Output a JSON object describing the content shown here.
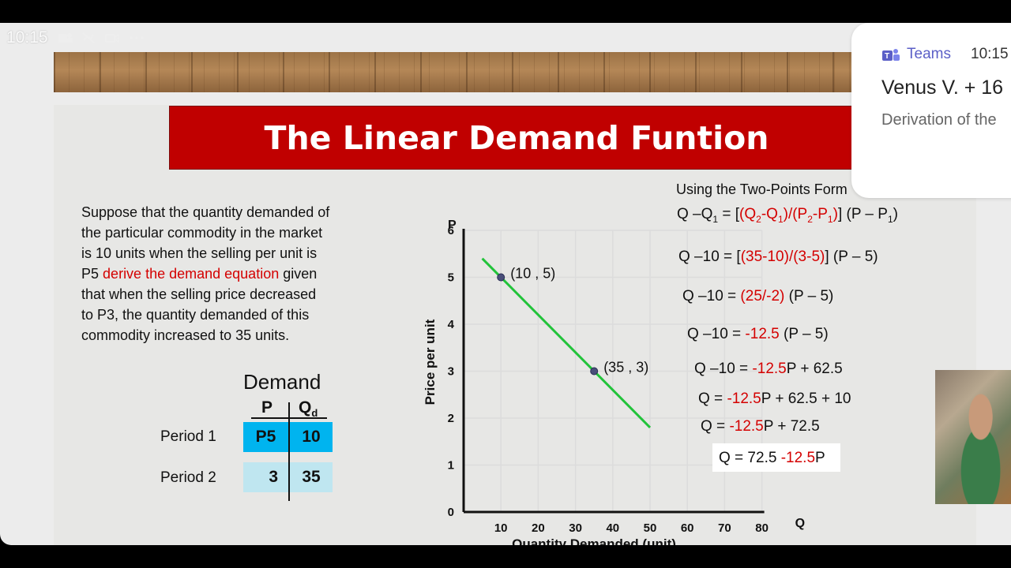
{
  "status_bar": {
    "time": "10:15",
    "icons": [
      "teams-icon",
      "muted-icon",
      "video-icon",
      "more-dots-icon"
    ]
  },
  "slide": {
    "title": "The Linear Demand Funtion",
    "problem": {
      "line1": "Suppose that the quantity demanded of",
      "line2": "the particular commodity in the market",
      "line3": "is 10 units when the selling per unit is",
      "line4_prefix": "P5",
      "line4_highlight": "derive the demand equation",
      "line4_suffix": "given",
      "line5": "that when the selling price decreased",
      "line6": "to P3, the quantity demanded of this",
      "line7": "commodity increased to 35 units."
    },
    "demand_table": {
      "title": "Demand",
      "col_p": "P",
      "col_q": "Q",
      "col_q_sub": "d",
      "rows": [
        {
          "period": "Period 1",
          "p": "P5",
          "q": "10"
        },
        {
          "period": "Period 2",
          "p": "3",
          "q": "35"
        }
      ]
    },
    "equations": {
      "heading": "Using the Two-Points Form",
      "e1": {
        "a": "Q –Q",
        "a_sub": "1",
        "b": " = [",
        "c_red": "(Q",
        "c_sub1": "2",
        "c2": "-Q",
        "c_sub2": "1",
        "c3": ")/(P",
        "c_sub3": "2",
        "c4": "-P",
        "c_sub4": "1",
        "c5": ")",
        "d": "] (P – P",
        "d_sub": "1",
        "e": ")"
      },
      "e2": {
        "a": "Q –10 = [",
        "red": "(35-10)/(3-5)",
        "b": "] (P – 5)"
      },
      "e3": {
        "a": "Q –10 = ",
        "red": "(25/-2)",
        "b": " (P – 5)"
      },
      "e4": {
        "a": "Q –10 = ",
        "red": "-12.5",
        "b": " (P – 5)"
      },
      "e5": {
        "a": "Q –10 = ",
        "red": "-12.5",
        "b": "P + 62.5"
      },
      "e6": {
        "a": "Q = ",
        "red": "-12.5",
        "b": "P + 62.5 + 10"
      },
      "e7": {
        "a": "Q = ",
        "red": "-12.5",
        "b": "P + 72.5"
      },
      "e8": {
        "a": "Q = 72.5 ",
        "red": "-12.5",
        "b": "P"
      }
    },
    "colors": {
      "banner": "#c00000",
      "highlight": "#d40000",
      "table_primary": "#00b4ef",
      "table_light": "#bfe6f0",
      "line": "#22c33a"
    }
  },
  "chart_data": {
    "type": "line",
    "xlabel": "Quantity Demanded (unit)",
    "ylabel": "Price per unit",
    "x_axis_letter": "Q",
    "y_axis_letter": "P",
    "xlim": [
      0,
      80
    ],
    "ylim": [
      0,
      6
    ],
    "x_ticks": [
      10,
      20,
      30,
      40,
      50,
      60,
      70,
      80
    ],
    "y_ticks": [
      0,
      1,
      2,
      3,
      4,
      5,
      6
    ],
    "grid": true,
    "series": [
      {
        "x": [
          5,
          50
        ],
        "y": [
          5.4,
          1.8
        ]
      }
    ],
    "points": [
      {
        "x": 10,
        "y": 5,
        "label": "(10 , 5)"
      },
      {
        "x": 35,
        "y": 3,
        "label": "(35 , 3)"
      }
    ]
  },
  "teams_notification": {
    "app": "Teams",
    "time": "10:15",
    "sender": "Venus V. + 16",
    "preview": "Derivation of the"
  },
  "camera": {
    "participant": "self-view"
  }
}
